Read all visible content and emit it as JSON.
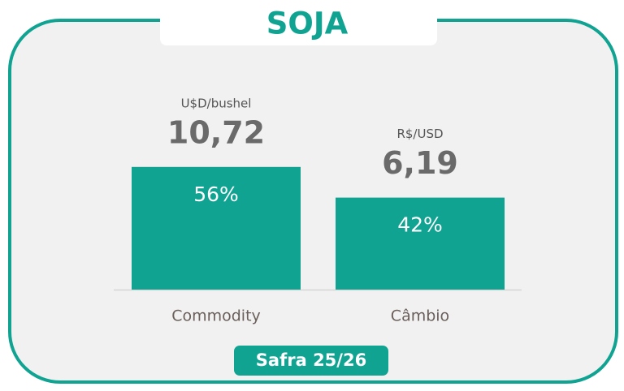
{
  "chart_data": {
    "type": "bar",
    "title": "SOJA",
    "categories": [
      "Commodity",
      "Câmbio"
    ],
    "values": [
      56,
      42
    ],
    "value_labels": [
      "56%",
      "42%"
    ],
    "color": "#10a392",
    "annotations": [
      {
        "unit": "U$D/bushel",
        "price": "10,72"
      },
      {
        "unit": "R$/USD",
        "price": "6,19"
      }
    ],
    "badge": "Safra 25/26"
  }
}
